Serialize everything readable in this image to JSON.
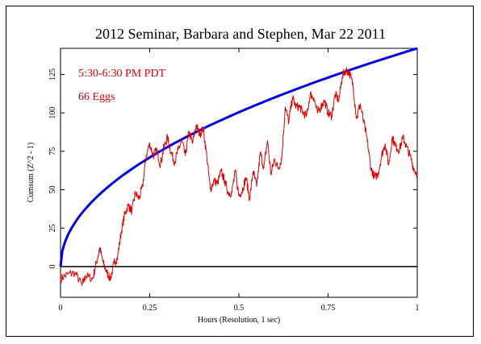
{
  "chart_data": {
    "type": "line",
    "title": "2012 Seminar, Barbara and Stephen, Mar 22 2011",
    "xlabel": "Hours (Resolution, 1 sec)",
    "ylabel": "Cumsum (Z^2 - 1)",
    "xlim": [
      0,
      1
    ],
    "ylim": [
      -20,
      142
    ],
    "x_ticks": [
      "0",
      "0.25",
      "0.5",
      "0.75",
      "1"
    ],
    "y_ticks": [
      "0",
      "25",
      "50",
      "75",
      "100",
      "125"
    ],
    "annotations": [
      "5:30-6:30 PM PDT",
      "66 Eggs"
    ],
    "series": [
      {
        "color": "#e00000",
        "x": [
          0,
          0.02,
          0.04,
          0.06,
          0.07,
          0.09,
          0.1,
          0.11,
          0.12,
          0.13,
          0.14,
          0.15,
          0.16,
          0.17,
          0.18,
          0.19,
          0.2,
          0.21,
          0.22,
          0.23,
          0.24,
          0.25,
          0.26,
          0.27,
          0.28,
          0.29,
          0.3,
          0.31,
          0.32,
          0.33,
          0.34,
          0.35,
          0.36,
          0.37,
          0.38,
          0.39,
          0.4,
          0.41,
          0.42,
          0.43,
          0.44,
          0.45,
          0.46,
          0.47,
          0.48,
          0.49,
          0.5,
          0.51,
          0.52,
          0.53,
          0.54,
          0.55,
          0.56,
          0.57,
          0.58,
          0.59,
          0.6,
          0.61,
          0.62,
          0.63,
          0.64,
          0.65,
          0.66,
          0.67,
          0.68,
          0.69,
          0.7,
          0.71,
          0.72,
          0.73,
          0.74,
          0.75,
          0.76,
          0.77,
          0.78,
          0.79,
          0.8,
          0.81,
          0.82,
          0.83,
          0.84,
          0.85,
          0.86,
          0.87,
          0.88,
          0.89,
          0.9,
          0.91,
          0.92,
          0.93,
          0.94,
          0.95,
          0.96,
          0.97,
          0.98,
          0.99,
          1.0
        ],
        "y": [
          -8,
          -5,
          -4,
          -12,
          -6,
          -8,
          2,
          12,
          2,
          -4,
          -8,
          2,
          6,
          22,
          34,
          40,
          36,
          48,
          44,
          52,
          72,
          80,
          72,
          76,
          66,
          78,
          84,
          74,
          68,
          76,
          82,
          72,
          88,
          80,
          92,
          86,
          90,
          72,
          50,
          56,
          54,
          62,
          56,
          48,
          48,
          62,
          46,
          50,
          58,
          44,
          62,
          52,
          74,
          64,
          82,
          60,
          70,
          64,
          70,
          104,
          94,
          110,
          104,
          104,
          100,
          98,
          112,
          110,
          100,
          104,
          108,
          100,
          98,
          112,
          108,
          124,
          128,
          126,
          118,
          96,
          106,
          94,
          82,
          64,
          58,
          60,
          72,
          80,
          66,
          84,
          78,
          76,
          84,
          78,
          72,
          64,
          60
        ]
      },
      {
        "color": "#0000e0",
        "shape": "sqrt",
        "x": [
          0,
          1
        ],
        "y_end": 142
      }
    ]
  }
}
